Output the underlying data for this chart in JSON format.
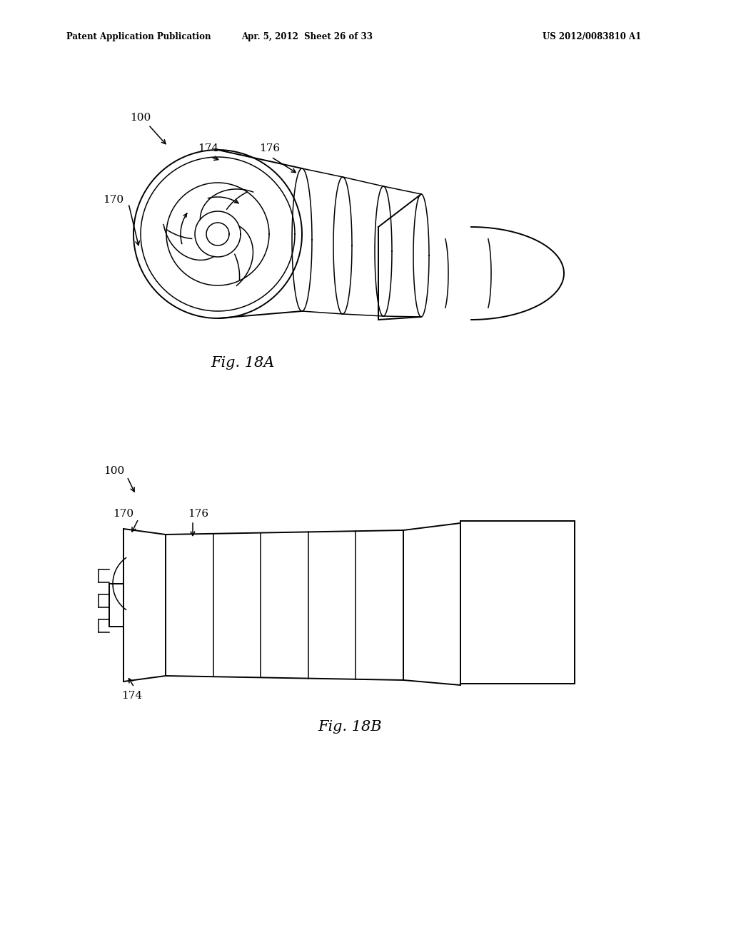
{
  "background_color": "#ffffff",
  "header_left": "Patent Application Publication",
  "header_mid": "Apr. 5, 2012  Sheet 26 of 33",
  "header_right": "US 2012/0083810 A1",
  "fig1_label": "Fig. 18A",
  "fig2_label": "Fig. 18B",
  "lw": 1.4,
  "lw_thin": 1.1
}
